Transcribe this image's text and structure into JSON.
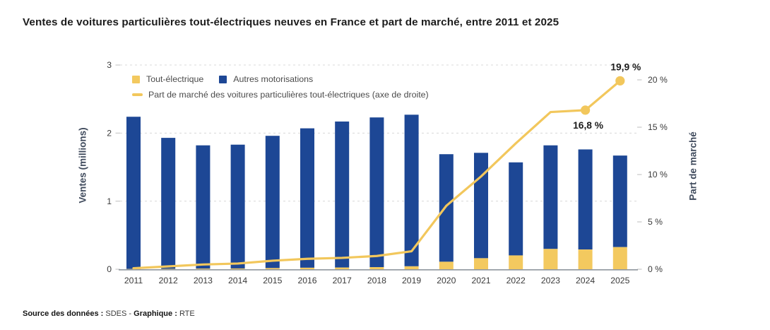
{
  "title": "Ventes de voitures particulières tout-électriques neuves en France et part de marché, entre 2011 et 2025",
  "legend": {
    "ev_label": "Tout-électrique",
    "other_label": "Autres motorisations",
    "line_label": "Part de marché des voitures particulières tout-électriques (axe de droite)"
  },
  "axes": {
    "left_title": "Ventes (millions)",
    "right_title": "Part de marché",
    "left_ticks": [
      "0",
      "1",
      "2",
      "3"
    ],
    "right_ticks": [
      "0 %",
      "5 %",
      "10 %",
      "15 %",
      "20 %"
    ]
  },
  "source": {
    "data_label": "Source des données :",
    "data_value": "SDES",
    "separator": "-",
    "graph_label": "Graphique :",
    "graph_value": "RTE"
  },
  "colors": {
    "ev": "#F3C95F",
    "other": "#1d4795",
    "line": "#F2C75C",
    "grid": "#d8d8d8",
    "tickmark": "#c9c9c9",
    "axis_line": "#8f969e",
    "title": "#1c1c1c",
    "axis_title": "#3f4a5c",
    "anno": "#1c1c1c"
  },
  "chart_data": {
    "type": "bar",
    "subtype": "stacked-bars-with-line",
    "title": "Ventes de voitures particulières tout-électriques neuves en France et part de marché, entre 2011 et 2025",
    "categories": [
      "2011",
      "2012",
      "2013",
      "2014",
      "2015",
      "2016",
      "2017",
      "2018",
      "2019",
      "2020",
      "2021",
      "2022",
      "2023",
      "2024",
      "2025"
    ],
    "series": [
      {
        "name": "Tout-électrique",
        "axis": "left",
        "unit": "millions",
        "values": [
          0.003,
          0.006,
          0.009,
          0.011,
          0.017,
          0.022,
          0.025,
          0.031,
          0.043,
          0.11,
          0.162,
          0.203,
          0.298,
          0.29,
          0.325
        ]
      },
      {
        "name": "Autres motorisations",
        "axis": "left",
        "unit": "millions",
        "values": [
          2.237,
          1.924,
          1.811,
          1.819,
          1.943,
          2.048,
          2.145,
          2.199,
          2.227,
          1.58,
          1.548,
          1.367,
          1.522,
          1.47,
          1.345
        ]
      },
      {
        "name": "Part de marché des voitures particulières tout-électriques (axe de droite)",
        "type": "line",
        "axis": "right",
        "unit": "%",
        "values": [
          0.1,
          0.3,
          0.5,
          0.6,
          0.9,
          1.1,
          1.2,
          1.4,
          1.9,
          6.7,
          9.8,
          13.3,
          16.6,
          16.8,
          19.9
        ]
      }
    ],
    "annotations": [
      {
        "year": "2024",
        "label": "16,8 %",
        "placement": "below"
      },
      {
        "year": "2025",
        "label": "19,9 %",
        "placement": "above"
      }
    ],
    "xlabel": "",
    "ylabel_left": "Ventes (millions)",
    "ylabel_right": "Part de marché",
    "ylim_left": [
      0,
      3
    ],
    "ylim_right": [
      0,
      20
    ],
    "grid": "horizontal dashed at left-axis values 1, 2, 3",
    "legend_position": "top-left inside plot"
  }
}
